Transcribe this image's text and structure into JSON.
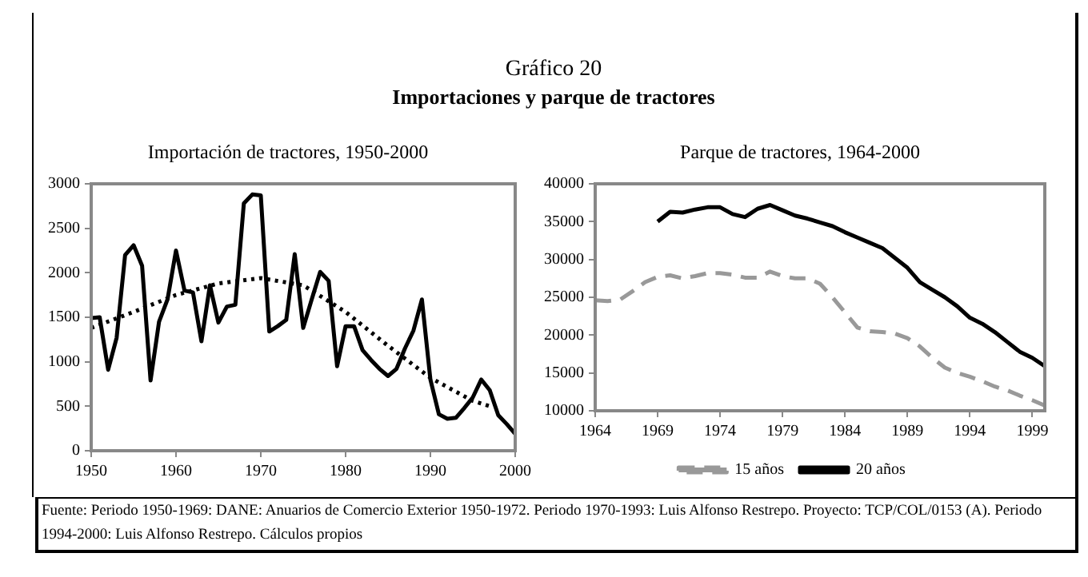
{
  "chart_data": [
    {
      "type": "line",
      "title": "Importación de tractores, 1950-2000",
      "annotations": [
        "Gráfico 20",
        "Importaciones y parque de tractores"
      ],
      "x": [
        1950,
        1951,
        1952,
        1953,
        1954,
        1955,
        1956,
        1957,
        1958,
        1959,
        1960,
        1961,
        1962,
        1963,
        1964,
        1965,
        1966,
        1967,
        1968,
        1969,
        1970,
        1971,
        1972,
        1973,
        1974,
        1975,
        1976,
        1977,
        1978,
        1979,
        1980,
        1981,
        1982,
        1983,
        1984,
        1985,
        1986,
        1987,
        1988,
        1989,
        1990,
        1991,
        1992,
        1993,
        1994,
        1995,
        1996,
        1997,
        1998,
        1999,
        2000
      ],
      "series": [
        {
          "color": "#000000",
          "line_style": "solid",
          "values": [
            1490,
            1500,
            910,
            1270,
            2200,
            2310,
            2080,
            790,
            1450,
            1700,
            2250,
            1800,
            1780,
            1230,
            1860,
            1440,
            1620,
            1640,
            2780,
            2880,
            2870,
            1340,
            1400,
            1470,
            2210,
            1380,
            1700,
            2010,
            1910,
            950,
            1400,
            1400,
            1130,
            1020,
            920,
            840,
            920,
            1150,
            1350,
            1700,
            800,
            410,
            360,
            370,
            480,
            600,
            800,
            680,
            400,
            300,
            190
          ]
        },
        {
          "type": "line",
          "color": "#000000",
          "line_style": "dotted",
          "x": [
            1950,
            1955,
            1960,
            1965,
            1970,
            1975,
            1980,
            1985,
            1990,
            1995,
            1997
          ],
          "values": [
            1380,
            1560,
            1750,
            1880,
            1940,
            1860,
            1560,
            1180,
            820,
            560,
            500
          ]
        }
      ],
      "xlim": [
        1950,
        2000
      ],
      "xticks": [
        1950,
        1960,
        1970,
        1980,
        1990,
        2000
      ],
      "ylim": [
        0,
        3000
      ],
      "yticks": [
        0,
        500,
        1000,
        1500,
        2000,
        2500,
        3000
      ],
      "grid": false,
      "legend": false,
      "marker": "none"
    },
    {
      "type": "line",
      "title": "Parque de tractores, 1964-2000",
      "annotations": [
        "Fuente: Periodo 1950-1969: DANE: Anuarios de Comercio Exterior 1950-1972. Periodo 1970-1993: Luis Alfonso Restrepo. Proyecto: TCP/COL/0153 (A). Periodo 1994-2000: Luis Alfonso Restrepo. Cálculos propios"
      ],
      "x": [
        1964,
        1965,
        1966,
        1967,
        1968,
        1969,
        1970,
        1971,
        1972,
        1973,
        1974,
        1975,
        1976,
        1977,
        1978,
        1979,
        1980,
        1981,
        1982,
        1983,
        1984,
        1985,
        1986,
        1987,
        1988,
        1989,
        1990,
        1991,
        1992,
        1993,
        1994,
        1995,
        1996,
        1997,
        1998,
        1999,
        2000
      ],
      "series": [
        {
          "name": "15 años",
          "color": "#999999",
          "line_style": "dashed",
          "values": [
            24600,
            24500,
            24700,
            25800,
            27000,
            27700,
            27900,
            27500,
            27800,
            28200,
            28200,
            28000,
            27600,
            27600,
            28400,
            27800,
            27500,
            27500,
            26800,
            25000,
            23000,
            21000,
            20500,
            20400,
            20200,
            19600,
            18500,
            17000,
            15700,
            15000,
            14500,
            13900,
            13200,
            12700,
            12000,
            11400,
            10700
          ]
        },
        {
          "name": "20 años",
          "color": "#000000",
          "line_style": "solid",
          "values": [
            null,
            null,
            null,
            null,
            null,
            35000,
            36300,
            36200,
            36600,
            36900,
            36900,
            36000,
            35600,
            36700,
            37200,
            36500,
            35800,
            35400,
            34900,
            34400,
            33600,
            32900,
            32200,
            31500,
            30200,
            28900,
            27000,
            26000,
            25000,
            23800,
            22300,
            21500,
            20400,
            19100,
            17800,
            17000,
            15900
          ]
        }
      ],
      "xlim": [
        1964,
        2000
      ],
      "xticks": [
        1964,
        1969,
        1974,
        1979,
        1984,
        1989,
        1994,
        1999
      ],
      "ylim": [
        10000,
        40000
      ],
      "yticks": [
        10000,
        15000,
        20000,
        25000,
        30000,
        35000,
        40000
      ],
      "grid": false,
      "legend": "bottom",
      "marker": "none"
    }
  ]
}
